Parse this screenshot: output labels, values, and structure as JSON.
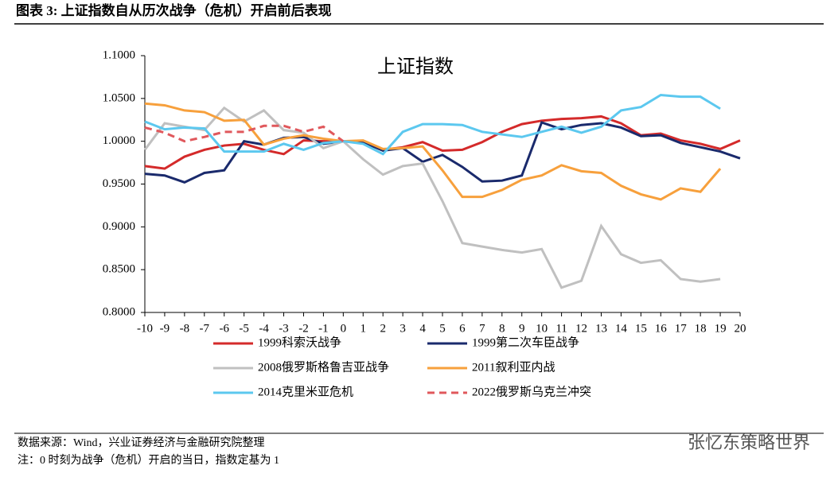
{
  "header": "图表 3:  上证指数自从历次战争（危机）开启前后表现",
  "source": "数据来源：Wind，兴业证券经济与金融研究院整理",
  "note": "注：0 时刻为战争（危机）开启的当日，指数定基为 1",
  "watermark": "张忆东策略世界",
  "chart_data": {
    "type": "line",
    "title": "上证指数",
    "x": [
      -10,
      -9,
      -8,
      -7,
      -6,
      -5,
      -4,
      -3,
      -2,
      -1,
      0,
      1,
      2,
      3,
      4,
      5,
      6,
      7,
      8,
      9,
      10,
      11,
      12,
      13,
      14,
      15,
      16,
      17,
      18,
      19,
      20
    ],
    "xlim": [
      -10,
      20
    ],
    "xticks": [
      -10,
      -9,
      -8,
      -7,
      -6,
      -5,
      -4,
      -3,
      -2,
      -1,
      0,
      1,
      2,
      3,
      4,
      5,
      6,
      7,
      8,
      9,
      10,
      11,
      12,
      13,
      14,
      15,
      16,
      17,
      18,
      19,
      20
    ],
    "ylim": [
      0.8,
      1.1
    ],
    "yticks": [
      {
        "value": 0.8,
        "label": "0.8000"
      },
      {
        "value": 0.85,
        "label": "0.8500"
      },
      {
        "value": 0.9,
        "label": "0.9000"
      },
      {
        "value": 0.95,
        "label": "0.9500"
      },
      {
        "value": 1.0,
        "label": "1.0000"
      },
      {
        "value": 1.05,
        "label": "1.0500"
      },
      {
        "value": 1.1,
        "label": "1.1000"
      }
    ],
    "grid": false,
    "series": [
      {
        "name": "1999科索沃战争",
        "color": "#d42a2a",
        "style": "solid",
        "values": [
          0.971,
          0.968,
          0.982,
          0.99,
          0.995,
          0.997,
          0.99,
          0.985,
          1.001,
          1.0,
          1.0,
          0.998,
          0.99,
          0.993,
          0.999,
          0.989,
          0.99,
          0.999,
          1.011,
          1.02,
          1.024,
          1.026,
          1.027,
          1.029,
          1.021,
          1.007,
          1.009,
          1.001,
          0.997,
          0.991,
          1.001
        ]
      },
      {
        "name": "1999第二次车臣战争",
        "color": "#1a2a6c",
        "style": "solid",
        "values": [
          0.962,
          0.96,
          0.952,
          0.963,
          0.966,
          1.0,
          0.996,
          1.004,
          1.005,
          0.997,
          1.0,
          0.999,
          0.989,
          0.992,
          0.976,
          0.984,
          0.97,
          0.953,
          0.954,
          0.96,
          1.022,
          1.014,
          1.019,
          1.021,
          1.016,
          1.006,
          1.007,
          0.998,
          0.993,
          0.988,
          0.98
        ]
      },
      {
        "name": "2008俄罗斯格鲁吉亚战争",
        "color": "#c0c0c0",
        "style": "solid",
        "values": [
          0.99,
          1.021,
          1.017,
          1.013,
          1.039,
          1.023,
          1.036,
          1.013,
          1.01,
          0.992,
          1.0,
          0.979,
          0.961,
          0.971,
          0.974,
          0.93,
          0.881,
          0.877,
          0.873,
          0.87,
          0.874,
          0.829,
          0.837,
          0.901,
          0.868,
          0.858,
          0.861,
          0.839,
          0.836,
          0.839,
          null
        ]
      },
      {
        "name": "2011叙利亚内战",
        "color": "#f7a03c",
        "style": "solid",
        "values": [
          1.044,
          1.042,
          1.036,
          1.034,
          1.024,
          1.025,
          0.996,
          1.003,
          1.007,
          1.003,
          1.0,
          1.001,
          0.991,
          0.992,
          0.994,
          0.966,
          0.935,
          0.935,
          0.943,
          0.955,
          0.96,
          0.972,
          0.965,
          0.963,
          0.948,
          0.938,
          0.932,
          0.945,
          0.941,
          0.968,
          null
        ]
      },
      {
        "name": "2014克里米亚危机",
        "color": "#5cc8ef",
        "style": "solid",
        "values": [
          1.023,
          1.014,
          1.016,
          1.015,
          0.988,
          0.988,
          0.988,
          0.997,
          0.99,
          0.998,
          1.0,
          0.997,
          0.985,
          1.011,
          1.02,
          1.02,
          1.019,
          1.011,
          1.008,
          1.005,
          1.011,
          1.017,
          1.01,
          1.017,
          1.036,
          1.04,
          1.054,
          1.052,
          1.052,
          1.038,
          null
        ]
      },
      {
        "name": "2022俄罗斯乌克兰冲突",
        "color": "#e0585c",
        "style": "dashed",
        "values": [
          1.016,
          1.01,
          1.0,
          1.005,
          1.011,
          1.011,
          1.018,
          1.018,
          1.011,
          1.017,
          1.0,
          null,
          null,
          null,
          null,
          null,
          null,
          null,
          null,
          null,
          null,
          null,
          null,
          null,
          null,
          null,
          null,
          null,
          null,
          null,
          null
        ]
      }
    ]
  }
}
